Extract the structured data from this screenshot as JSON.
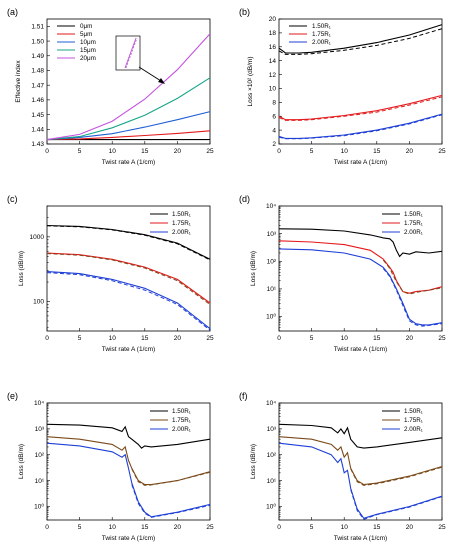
{
  "chart_data": [
    {
      "panel": "(a)",
      "type": "line",
      "xlabel": "Twist rate A (1/cm)",
      "ylabel": "Effective index",
      "xlim": [
        0,
        25
      ],
      "ylim": [
        1.43,
        1.515
      ],
      "yscale": "linear",
      "xticks": [
        0,
        5,
        10,
        15,
        20,
        25
      ],
      "yticks": [
        1.43,
        1.44,
        1.45,
        1.46,
        1.47,
        1.48,
        1.49,
        1.5,
        1.51
      ],
      "ytick_labels": [
        "1.43",
        "1.44",
        "1.45",
        "1.46",
        "1.47",
        "1.48",
        "1.49",
        "1.50",
        "1.51"
      ],
      "legend": "top-left",
      "legend_entries": [
        "0μm",
        "5μm",
        "10μm",
        "15μm",
        "20μm"
      ],
      "series": [
        {
          "name": "0μm",
          "color": "#000000",
          "x": [
            0,
            25
          ],
          "y": [
            1.433,
            1.433
          ]
        },
        {
          "name": "5μm",
          "color": "#e31a1c",
          "x": [
            0,
            5,
            10,
            15,
            20,
            25
          ],
          "y": [
            1.433,
            1.4335,
            1.4345,
            1.4358,
            1.4372,
            1.439
          ]
        },
        {
          "name": "10μm",
          "color": "#1f5fd6",
          "x": [
            0,
            5,
            10,
            15,
            20,
            25
          ],
          "y": [
            1.433,
            1.4345,
            1.437,
            1.4415,
            1.4465,
            1.452
          ]
        },
        {
          "name": "15μm",
          "color": "#17a589",
          "x": [
            0,
            5,
            10,
            15,
            20,
            25
          ],
          "y": [
            1.433,
            1.435,
            1.441,
            1.4495,
            1.461,
            1.475
          ]
        },
        {
          "name": "20μm",
          "color": "#c552e0",
          "x": [
            0,
            5,
            10,
            15,
            20,
            25
          ],
          "y": [
            1.433,
            1.4365,
            1.4455,
            1.4605,
            1.4805,
            1.505
          ]
        }
      ]
    },
    {
      "panel": "(b)",
      "type": "line",
      "xlabel": "Twist rate A (1/cm)",
      "ylabel": "Loss ×10² (dB/m)",
      "xlim": [
        0,
        25
      ],
      "ylim": [
        2,
        20
      ],
      "yscale": "linear",
      "xticks": [
        0,
        5,
        10,
        15,
        20,
        25
      ],
      "yticks": [
        2,
        4,
        6,
        8,
        10,
        12,
        14,
        16,
        18,
        20
      ],
      "legend": "top-left",
      "legend_entries": [
        "1.50R₁",
        "1.75R₁",
        "2.00R₁"
      ],
      "series": [
        {
          "name": "1.50R₁",
          "color": "#000000",
          "x": [
            0,
            1,
            3,
            5,
            10,
            15,
            20,
            25
          ],
          "y": [
            15.8,
            15.1,
            15.1,
            15.2,
            15.8,
            16.6,
            17.7,
            19.2
          ]
        },
        {
          "name": "1.50R₁ (dashed)",
          "color": "#000000",
          "dashed": true,
          "x": [
            0,
            1,
            3,
            5,
            10,
            15,
            20,
            25
          ],
          "y": [
            15.4,
            14.9,
            14.9,
            15.0,
            15.5,
            16.2,
            17.2,
            18.6
          ]
        },
        {
          "name": "1.75R₁",
          "color": "#e31a1c",
          "x": [
            0,
            1,
            3,
            5,
            10,
            15,
            20,
            25
          ],
          "y": [
            6.0,
            5.5,
            5.5,
            5.6,
            6.1,
            6.8,
            7.8,
            9.0
          ]
        },
        {
          "name": "1.75R₁ (dashed)",
          "color": "#e31a1c",
          "dashed": true,
          "x": [
            0,
            1,
            3,
            5,
            10,
            15,
            20,
            25
          ],
          "y": [
            5.8,
            5.4,
            5.4,
            5.5,
            6.0,
            6.6,
            7.6,
            8.8
          ]
        },
        {
          "name": "2.00R₁",
          "color": "#1f3fd6",
          "x": [
            0,
            1,
            3,
            5,
            10,
            15,
            20,
            25
          ],
          "y": [
            3.1,
            2.8,
            2.8,
            2.9,
            3.3,
            4.0,
            5.0,
            6.3
          ]
        },
        {
          "name": "2.00R₁ (dashed)",
          "color": "#1f3fd6",
          "dashed": true,
          "x": [
            0,
            1,
            3,
            5,
            10,
            15,
            20,
            25
          ],
          "y": [
            3.0,
            2.75,
            2.75,
            2.85,
            3.2,
            3.9,
            4.9,
            6.2
          ]
        }
      ]
    },
    {
      "panel": "(c)",
      "type": "line",
      "xlabel": "Twist rate A (1/cm)",
      "ylabel": "Loss (dB/m)",
      "xlim": [
        0,
        25
      ],
      "ylim": [
        35,
        3000
      ],
      "yscale": "log",
      "xticks": [
        0,
        5,
        10,
        15,
        20,
        25
      ],
      "yticks": [
        100,
        1000
      ],
      "ytick_labels": [
        "100",
        "1000"
      ],
      "legend": "top-right",
      "legend_entries": [
        "1.50R₁",
        "1.75R₁",
        "2.00R₁"
      ],
      "series": [
        {
          "name": "1.50R₁",
          "color": "#000000",
          "x": [
            0,
            5,
            10,
            15,
            20,
            25
          ],
          "y": [
            1500,
            1450,
            1300,
            1080,
            800,
            450
          ]
        },
        {
          "name": "1.50R₁ (dashed)",
          "color": "#000000",
          "dashed": true,
          "x": [
            0,
            5,
            10,
            15,
            20,
            25
          ],
          "y": [
            1480,
            1430,
            1280,
            1060,
            780,
            440
          ]
        },
        {
          "name": "1.75R₁",
          "color": "#e31a1c",
          "x": [
            0,
            5,
            10,
            15,
            20,
            25
          ],
          "y": [
            560,
            530,
            450,
            340,
            220,
            95
          ]
        },
        {
          "name": "1.75R₁ (dashed)",
          "color": "#7a4a1a",
          "dashed": true,
          "x": [
            0,
            5,
            10,
            15,
            20,
            25
          ],
          "y": [
            550,
            520,
            440,
            330,
            210,
            90
          ]
        },
        {
          "name": "2.00R₁",
          "color": "#1f3fd6",
          "x": [
            0,
            5,
            10,
            15,
            20,
            25
          ],
          "y": [
            290,
            270,
            220,
            160,
            95,
            38
          ]
        },
        {
          "name": "2.00R₁ (dashed)",
          "color": "#1f3fd6",
          "dashed": true,
          "x": [
            0,
            5,
            10,
            15,
            20,
            25
          ],
          "y": [
            280,
            260,
            210,
            150,
            90,
            36
          ]
        }
      ]
    },
    {
      "panel": "(d)",
      "type": "line",
      "xlabel": "Twist rate A (1/cm)",
      "ylabel": "Loss (dB/m)",
      "xlim": [
        0,
        25
      ],
      "ylim": [
        0.3,
        10000
      ],
      "yscale": "log",
      "xticks": [
        0,
        5,
        10,
        15,
        20,
        25
      ],
      "yticks": [
        1,
        10,
        100,
        1000,
        10000
      ],
      "ytick_labels": [
        "10⁰",
        "10¹",
        "10²",
        "10³",
        "10⁴"
      ],
      "legend": "top-right",
      "legend_entries": [
        "1.50R₁",
        "1.75R₁",
        "2.00R₁"
      ],
      "series": [
        {
          "name": "1.50R₁",
          "color": "#000000",
          "x": [
            0,
            5,
            10,
            14,
            16,
            17,
            17.5,
            18,
            18.5,
            19,
            20,
            21,
            23,
            25
          ],
          "y": [
            1500,
            1450,
            1250,
            900,
            700,
            650,
            500,
            250,
            150,
            200,
            180,
            220,
            200,
            230
          ]
        },
        {
          "name": "1.75R₁",
          "color": "#e31a1c",
          "x": [
            0,
            5,
            10,
            14,
            16,
            17,
            17.5,
            18,
            19,
            20,
            21,
            23,
            25
          ],
          "y": [
            550,
            500,
            400,
            250,
            120,
            60,
            40,
            20,
            8,
            7,
            8,
            9,
            12
          ]
        },
        {
          "name": "1.75R₁ (dashed)",
          "color": "#7a4a1a",
          "dashed": true,
          "x": [
            16,
            17,
            18,
            19,
            20,
            21,
            23,
            25
          ],
          "y": [
            110,
            55,
            18,
            8,
            6.5,
            7.5,
            9,
            11
          ]
        },
        {
          "name": "2.00R₁",
          "color": "#1f3fd6",
          "x": [
            0,
            5,
            10,
            14,
            16,
            17,
            18,
            19,
            20,
            21,
            22,
            23,
            25
          ],
          "y": [
            280,
            260,
            200,
            120,
            60,
            30,
            10,
            3,
            0.8,
            0.55,
            0.5,
            0.5,
            0.6
          ]
        },
        {
          "name": "2.00R₁ (dashed)",
          "color": "#1f3fd6",
          "dashed": true,
          "x": [
            16,
            17,
            18,
            19,
            20,
            21,
            22,
            23,
            25
          ],
          "y": [
            55,
            28,
            9,
            2.5,
            0.7,
            0.5,
            0.45,
            0.48,
            0.55
          ]
        }
      ]
    },
    {
      "panel": "(e)",
      "type": "line",
      "xlabel": "Twist rate A (1/cm)",
      "ylabel": "Loss (dB/m)",
      "xlim": [
        0,
        25
      ],
      "ylim": [
        0.3,
        10000
      ],
      "yscale": "log",
      "xticks": [
        0,
        5,
        10,
        15,
        20,
        25
      ],
      "yticks": [
        1,
        10,
        100,
        1000,
        10000
      ],
      "ytick_labels": [
        "10⁰",
        "10¹",
        "10²",
        "10³",
        "10⁴"
      ],
      "legend": "top-right",
      "legend_entries": [
        "1.50R₁",
        "1.75R₁",
        "2.00R₁"
      ],
      "series": [
        {
          "name": "1.50R₁",
          "color": "#000000",
          "x": [
            0,
            5,
            10,
            11.5,
            12,
            12.5,
            13,
            14,
            14.5,
            15,
            16,
            20,
            25
          ],
          "y": [
            1500,
            1400,
            1100,
            800,
            1200,
            500,
            400,
            250,
            180,
            220,
            200,
            250,
            400
          ]
        },
        {
          "name": "1.75R₁",
          "color": "#7a4a1a",
          "x": [
            0,
            5,
            10,
            11.5,
            12,
            12.5,
            13,
            14,
            15,
            16,
            20,
            25
          ],
          "y": [
            500,
            400,
            250,
            150,
            200,
            60,
            30,
            10,
            7,
            7,
            10,
            22
          ]
        },
        {
          "name": "1.75R₁ (dashed)",
          "color": "#7a4a1a",
          "dashed": true,
          "x": [
            13,
            14,
            15,
            16,
            20,
            25
          ],
          "y": [
            28,
            9,
            6.5,
            6.8,
            10,
            21
          ]
        },
        {
          "name": "2.00R₁",
          "color": "#1f3fd6",
          "x": [
            0,
            5,
            10,
            11.5,
            12,
            12.5,
            13,
            14,
            15,
            16,
            20,
            25
          ],
          "y": [
            280,
            220,
            130,
            80,
            100,
            30,
            8,
            1.5,
            0.6,
            0.4,
            0.6,
            1.2
          ]
        },
        {
          "name": "2.00R₁ (dashed)",
          "color": "#1f3fd6",
          "dashed": true,
          "x": [
            13,
            14,
            15,
            16,
            20,
            25
          ],
          "y": [
            7,
            1.3,
            0.55,
            0.38,
            0.58,
            1.1
          ]
        }
      ]
    },
    {
      "panel": "(f)",
      "type": "line",
      "xlabel": "Twist rate A (1/cm)",
      "ylabel": "Loss (dB/m)",
      "xlim": [
        0,
        25
      ],
      "ylim": [
        0.3,
        10000
      ],
      "yscale": "log",
      "xticks": [
        0,
        5,
        10,
        15,
        20,
        25
      ],
      "yticks": [
        1,
        10,
        100,
        1000,
        10000
      ],
      "ytick_labels": [
        "10⁰",
        "10¹",
        "10²",
        "10³",
        "10⁴"
      ],
      "legend": "top-right",
      "legend_entries": [
        "1.50R₁",
        "1.75R₁",
        "2.00R₁"
      ],
      "series": [
        {
          "name": "1.50R₁",
          "color": "#000000",
          "x": [
            0,
            5,
            8,
            9,
            9.5,
            10,
            10.5,
            11,
            12,
            13,
            15,
            20,
            25
          ],
          "y": [
            1500,
            1350,
            1100,
            700,
            1000,
            650,
            1100,
            400,
            200,
            180,
            200,
            300,
            450
          ]
        },
        {
          "name": "1.75R₁",
          "color": "#7a4a1a",
          "x": [
            0,
            5,
            8,
            9,
            9.5,
            10,
            10.5,
            11,
            12,
            13,
            15,
            20,
            25
          ],
          "y": [
            500,
            400,
            250,
            150,
            200,
            80,
            120,
            30,
            10,
            7,
            8,
            15,
            35
          ]
        },
        {
          "name": "1.75R₁ (dashed)",
          "color": "#7a4a1a",
          "dashed": true,
          "x": [
            11,
            12,
            13,
            15,
            20,
            25
          ],
          "y": [
            28,
            9,
            6.5,
            7.5,
            14,
            33
          ]
        },
        {
          "name": "2.00R₁",
          "color": "#1f3fd6",
          "x": [
            0,
            5,
            8,
            9,
            9.5,
            10,
            10.5,
            11,
            12,
            13,
            15,
            20,
            25
          ],
          "y": [
            280,
            200,
            100,
            50,
            70,
            20,
            25,
            5,
            0.8,
            0.35,
            0.5,
            1.0,
            2.5
          ]
        },
        {
          "name": "2.00R₁ (dashed)",
          "color": "#1f3fd6",
          "dashed": true,
          "x": [
            11,
            12,
            13,
            15,
            20,
            25
          ],
          "y": [
            4.5,
            0.7,
            0.32,
            0.48,
            0.95,
            2.4
          ]
        }
      ]
    }
  ]
}
